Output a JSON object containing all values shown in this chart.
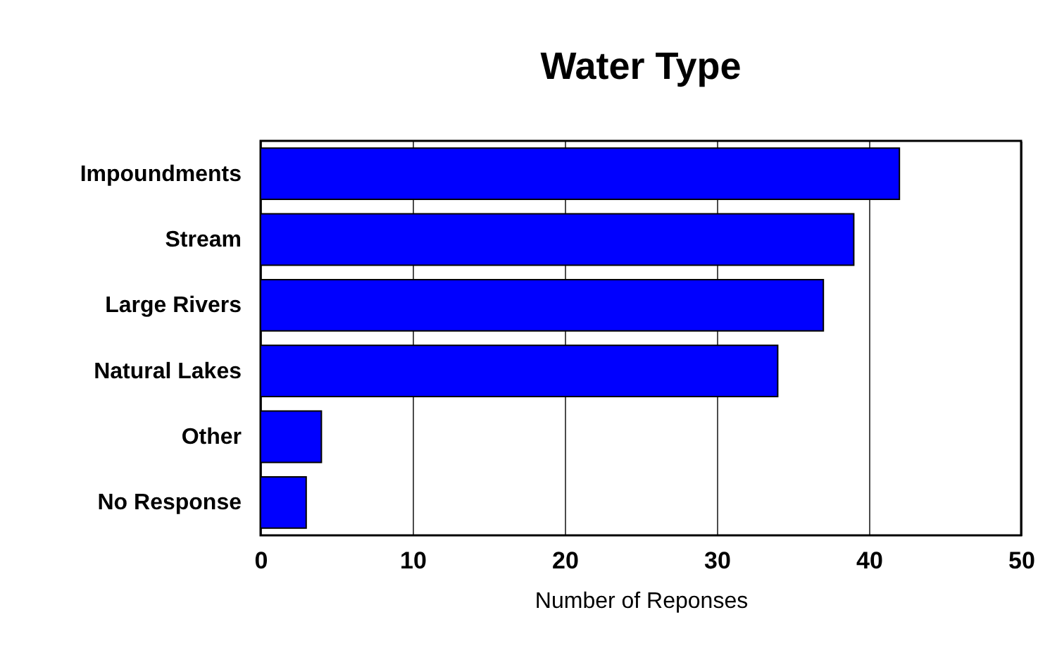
{
  "chart_data": {
    "type": "bar",
    "orientation": "horizontal",
    "title": "Water Type",
    "xlabel": "Number of Reponses",
    "categories": [
      "Impoundments",
      "Stream",
      "Large Rivers",
      "Natural Lakes",
      "Other",
      "No Response"
    ],
    "values": [
      42,
      39,
      37,
      34,
      4,
      3
    ],
    "color": "#0000ff",
    "xlim": [
      0,
      50
    ],
    "xticks": [
      0,
      10,
      20,
      30,
      40,
      50
    ],
    "grid": "x"
  }
}
